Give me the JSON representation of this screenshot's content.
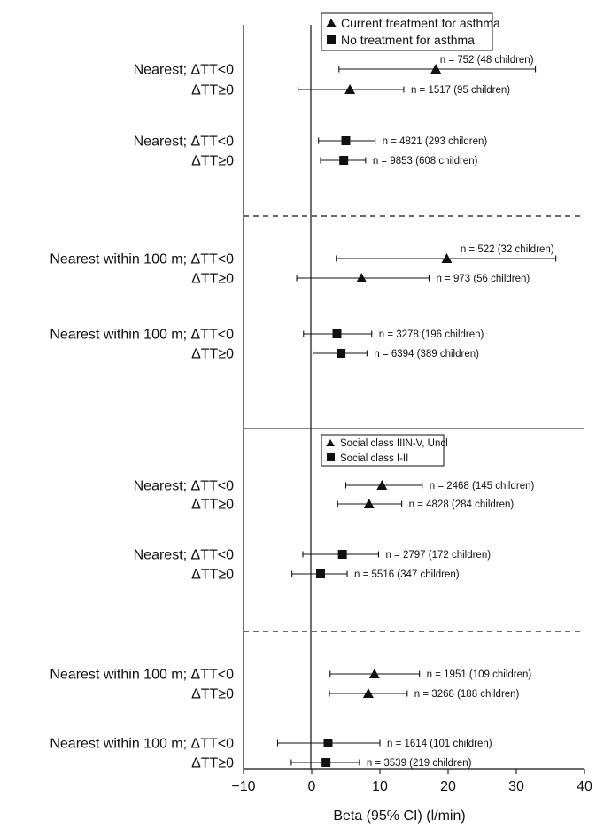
{
  "chart_data": {
    "type": "forest",
    "xlabel": "Beta (95% CI) (l/min)",
    "xlim": [
      -10,
      40
    ],
    "xticks": [
      -10,
      0,
      10,
      20,
      30,
      40
    ],
    "xtick_labels": [
      "−10",
      "0",
      "10",
      "20",
      "30",
      "40"
    ],
    "legends": [
      {
        "panel": "top",
        "entries": [
          {
            "marker": "triangle",
            "label": "Current treatment for asthma"
          },
          {
            "marker": "square",
            "label": "No treatment for asthma"
          }
        ]
      },
      {
        "panel": "bottom",
        "entries": [
          {
            "marker": "triangle",
            "label": "Social class IIIN-V, Uncl"
          },
          {
            "marker": "square",
            "label": "Social class I-II"
          }
        ]
      }
    ],
    "rows": [
      {
        "label": "Nearest; ΔTT<0",
        "marker": "triangle",
        "estimate": 18.2,
        "lower": 4.0,
        "upper": 32.8,
        "n_text": "n = 752 (48 children)"
      },
      {
        "label": "ΔTT≥0",
        "marker": "triangle",
        "estimate": 5.6,
        "lower": -2.0,
        "upper": 13.5,
        "n_text": "n = 1517 (95 children)"
      },
      {
        "label": "Nearest; ΔTT<0",
        "marker": "square",
        "estimate": 5.0,
        "lower": 1.0,
        "upper": 9.3,
        "n_text": "n = 4821 (293 children)"
      },
      {
        "label": "ΔTT≥0",
        "marker": "square",
        "estimate": 4.7,
        "lower": 1.3,
        "upper": 7.9,
        "n_text": "n = 9853 (608 children)"
      },
      {
        "label": "Nearest within 100 m; ΔTT<0",
        "marker": "triangle",
        "estimate": 19.8,
        "lower": 3.6,
        "upper": 35.8,
        "n_text": "n = 522 (32 children)"
      },
      {
        "label": "ΔTT≥0",
        "marker": "triangle",
        "estimate": 7.3,
        "lower": -2.2,
        "upper": 17.2,
        "n_text": "n = 973 (56 children)"
      },
      {
        "label": "Nearest within 100 m; ΔTT<0",
        "marker": "square",
        "estimate": 3.7,
        "lower": -1.2,
        "upper": 8.8,
        "n_text": "n = 3278 (196 children)"
      },
      {
        "label": "ΔTT≥0",
        "marker": "square",
        "estimate": 4.3,
        "lower": 0.2,
        "upper": 8.1,
        "n_text": "n = 6394 (389 children)"
      },
      {
        "label": "Nearest; ΔTT<0",
        "marker": "triangle",
        "estimate": 10.3,
        "lower": 5.0,
        "upper": 16.2,
        "n_text": "n = 2468 (145 children)"
      },
      {
        "label": "ΔTT≥0",
        "marker": "triangle",
        "estimate": 8.4,
        "lower": 3.8,
        "upper": 13.2,
        "n_text": "n = 4828 (284 children)"
      },
      {
        "label": "Nearest; ΔTT<0",
        "marker": "square",
        "estimate": 4.5,
        "lower": -1.3,
        "upper": 9.8,
        "n_text": "n = 2797 (172 children)"
      },
      {
        "label": "ΔTT≥0",
        "marker": "square",
        "estimate": 1.3,
        "lower": -2.9,
        "upper": 5.2,
        "n_text": "n = 5516 (347 children)"
      },
      {
        "label": "Nearest within 100 m; ΔTT<0",
        "marker": "triangle",
        "estimate": 9.2,
        "lower": 2.7,
        "upper": 15.8,
        "n_text": "n = 1951 (109 children)"
      },
      {
        "label": "ΔTT≥0",
        "marker": "triangle",
        "estimate": 8.3,
        "lower": 2.6,
        "upper": 14.0,
        "n_text": "n = 3268 (188 children)"
      },
      {
        "label": "Nearest within 100 m; ΔTT<0",
        "marker": "square",
        "estimate": 2.4,
        "lower": -5.0,
        "upper": 10.0,
        "n_text": "n = 1614 (101 children)"
      },
      {
        "label": "ΔTT≥0",
        "marker": "square",
        "estimate": 2.1,
        "lower": -3.0,
        "upper": 7.0,
        "n_text": "n = 3539 (219 children)"
      }
    ]
  }
}
